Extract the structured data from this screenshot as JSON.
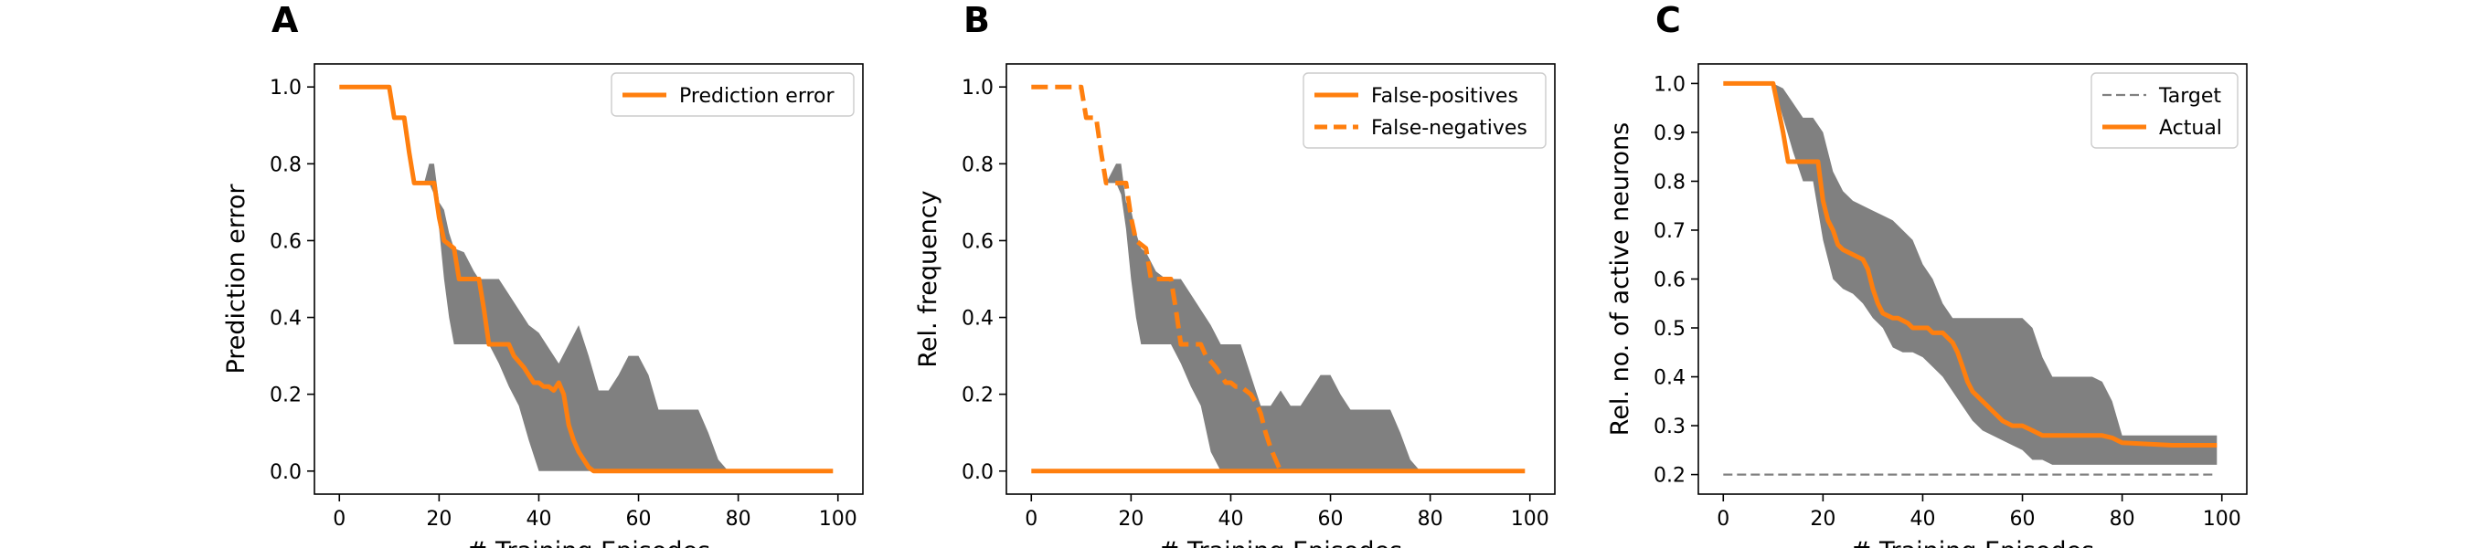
{
  "chart_data": [
    {
      "panel": "A",
      "type": "line",
      "xlabel": "# Training Episodes",
      "ylabel": "Prediction error",
      "xlim": [
        -5,
        105
      ],
      "ylim": [
        -0.06,
        1.06
      ],
      "xticks": [
        0,
        20,
        40,
        60,
        80,
        100
      ],
      "yticks": [
        0.0,
        0.2,
        0.4,
        0.6,
        0.8,
        1.0
      ],
      "ytick_labels": [
        "0.0",
        "0.2",
        "0.4",
        "0.6",
        "0.8",
        "1.0"
      ],
      "legend": {
        "position": "top-right",
        "entries": [
          {
            "label": "Prediction error",
            "style": "solid",
            "color": "#ff7f0e"
          }
        ]
      },
      "band": {
        "color": "#808080",
        "x": [
          11,
          13,
          15,
          17,
          18,
          19,
          20,
          21,
          22,
          23,
          25,
          27,
          28,
          30,
          32,
          34,
          36,
          38,
          40,
          42,
          44,
          46,
          48,
          50,
          52,
          54,
          56,
          58,
          60,
          62,
          64,
          66,
          68,
          70,
          72,
          74,
          76,
          78,
          99
        ],
        "upper": [
          1.0,
          0.9,
          0.75,
          0.75,
          0.8,
          0.8,
          0.7,
          0.68,
          0.62,
          0.58,
          0.57,
          0.52,
          0.5,
          0.5,
          0.5,
          0.46,
          0.42,
          0.38,
          0.36,
          0.32,
          0.28,
          0.33,
          0.38,
          0.3,
          0.21,
          0.21,
          0.25,
          0.3,
          0.3,
          0.25,
          0.16,
          0.16,
          0.16,
          0.16,
          0.16,
          0.1,
          0.03,
          0.0,
          0.0
        ],
        "lower": [
          1.0,
          0.9,
          0.75,
          0.75,
          0.75,
          0.72,
          0.63,
          0.5,
          0.4,
          0.33,
          0.33,
          0.33,
          0.33,
          0.33,
          0.28,
          0.22,
          0.17,
          0.08,
          0.0,
          0.0,
          0.0,
          0.0,
          0.0,
          0.0,
          0.0,
          0.0,
          0.0,
          0.0,
          0.0,
          0.0,
          0.0,
          0.0,
          0.0,
          0.0,
          0.0,
          0.0,
          0.0,
          0.0,
          0.0
        ]
      },
      "series": [
        {
          "name": "Prediction error",
          "color": "#ff7f0e",
          "style": "solid",
          "x": [
            0,
            10,
            11,
            12,
            13,
            14,
            15,
            18,
            19,
            20,
            21,
            23,
            24,
            27,
            28,
            29,
            30,
            31,
            33,
            34,
            35,
            37,
            38,
            39,
            40,
            41,
            42,
            43,
            44,
            45,
            46,
            47,
            48,
            49,
            50,
            51,
            52,
            99
          ],
          "y": [
            1.0,
            1.0,
            0.92,
            0.92,
            0.92,
            0.83,
            0.75,
            0.75,
            0.75,
            0.66,
            0.6,
            0.58,
            0.5,
            0.5,
            0.5,
            0.42,
            0.33,
            0.33,
            0.33,
            0.33,
            0.3,
            0.27,
            0.25,
            0.23,
            0.23,
            0.22,
            0.22,
            0.21,
            0.23,
            0.2,
            0.12,
            0.08,
            0.05,
            0.03,
            0.01,
            0.0,
            0.0,
            0.0
          ]
        }
      ]
    },
    {
      "panel": "B",
      "type": "line",
      "xlabel": "# Training Episodes",
      "ylabel": "Rel. frequency",
      "xlim": [
        -5,
        105
      ],
      "ylim": [
        -0.06,
        1.06
      ],
      "xticks": [
        0,
        20,
        40,
        60,
        80,
        100
      ],
      "yticks": [
        0.0,
        0.2,
        0.4,
        0.6,
        0.8,
        1.0
      ],
      "ytick_labels": [
        "0.0",
        "0.2",
        "0.4",
        "0.6",
        "0.8",
        "1.0"
      ],
      "legend": {
        "position": "top-right",
        "entries": [
          {
            "label": "False-positives",
            "style": "solid",
            "color": "#ff7f0e"
          },
          {
            "label": "False-negatives",
            "style": "dashed",
            "color": "#ff7f0e"
          }
        ]
      },
      "band": {
        "color": "#808080",
        "x": [
          13,
          15,
          17,
          18,
          19,
          20,
          21,
          22,
          23,
          25,
          27,
          28,
          30,
          32,
          34,
          36,
          38,
          40,
          42,
          44,
          46,
          48,
          50,
          52,
          54,
          56,
          58,
          60,
          62,
          64,
          66,
          68,
          70,
          72,
          74,
          76,
          78,
          99
        ],
        "upper": [
          0.75,
          0.75,
          0.8,
          0.8,
          0.7,
          0.68,
          0.62,
          0.58,
          0.57,
          0.52,
          0.5,
          0.5,
          0.5,
          0.46,
          0.42,
          0.38,
          0.33,
          0.33,
          0.33,
          0.25,
          0.17,
          0.17,
          0.21,
          0.17,
          0.17,
          0.21,
          0.25,
          0.25,
          0.2,
          0.16,
          0.16,
          0.16,
          0.16,
          0.16,
          0.1,
          0.03,
          0.0,
          0.0
        ],
        "lower": [
          0.75,
          0.75,
          0.75,
          0.72,
          0.63,
          0.5,
          0.4,
          0.33,
          0.33,
          0.33,
          0.33,
          0.33,
          0.28,
          0.22,
          0.17,
          0.05,
          0.0,
          0.0,
          0.0,
          0.0,
          0.0,
          0.0,
          0.0,
          0.0,
          0.0,
          0.0,
          0.0,
          0.0,
          0.0,
          0.0,
          0.0,
          0.0,
          0.0,
          0.0,
          0.0,
          0.0,
          0.0,
          0.0
        ]
      },
      "series": [
        {
          "name": "False-positives",
          "color": "#ff7f0e",
          "style": "solid",
          "x": [
            0,
            99
          ],
          "y": [
            0.0,
            0.0
          ]
        },
        {
          "name": "False-negatives",
          "color": "#ff7f0e",
          "style": "dashed",
          "x": [
            0,
            10,
            11,
            12,
            13,
            14,
            15,
            18,
            19,
            20,
            21,
            23,
            24,
            27,
            28,
            29,
            30,
            31,
            33,
            34,
            35,
            37,
            38,
            39,
            40,
            41,
            42,
            43,
            44,
            45,
            46,
            47,
            48,
            49,
            50
          ],
          "y": [
            1.0,
            1.0,
            0.92,
            0.92,
            0.92,
            0.83,
            0.75,
            0.75,
            0.75,
            0.66,
            0.6,
            0.58,
            0.5,
            0.5,
            0.5,
            0.42,
            0.33,
            0.33,
            0.33,
            0.33,
            0.3,
            0.27,
            0.25,
            0.23,
            0.23,
            0.22,
            0.22,
            0.21,
            0.2,
            0.18,
            0.15,
            0.1,
            0.06,
            0.03,
            0.0
          ]
        }
      ]
    },
    {
      "panel": "C",
      "type": "line",
      "xlabel": "# Training Episodes",
      "ylabel": "Rel. no. of active neurons",
      "xlim": [
        -5,
        105
      ],
      "ylim": [
        0.16,
        1.04
      ],
      "xticks": [
        0,
        20,
        40,
        60,
        80,
        100
      ],
      "yticks": [
        0.2,
        0.3,
        0.4,
        0.5,
        0.6,
        0.7,
        0.8,
        0.9,
        1.0
      ],
      "ytick_labels": [
        "0.2",
        "0.3",
        "0.4",
        "0.5",
        "0.6",
        "0.7",
        "0.8",
        "0.9",
        "1.0"
      ],
      "legend": {
        "position": "top-right",
        "entries": [
          {
            "label": "Target",
            "style": "dashed",
            "color": "#808080"
          },
          {
            "label": "Actual",
            "style": "solid",
            "color": "#ff7f0e"
          }
        ]
      },
      "band": {
        "color": "#808080",
        "x": [
          10,
          12,
          14,
          16,
          18,
          20,
          22,
          24,
          26,
          28,
          30,
          32,
          34,
          36,
          38,
          40,
          42,
          44,
          46,
          48,
          50,
          52,
          54,
          56,
          58,
          60,
          62,
          64,
          66,
          68,
          70,
          72,
          74,
          76,
          78,
          80,
          82,
          99
        ],
        "upper": [
          1.0,
          0.99,
          0.96,
          0.93,
          0.93,
          0.9,
          0.82,
          0.78,
          0.76,
          0.75,
          0.74,
          0.73,
          0.72,
          0.7,
          0.68,
          0.63,
          0.6,
          0.55,
          0.52,
          0.52,
          0.52,
          0.52,
          0.52,
          0.52,
          0.52,
          0.52,
          0.5,
          0.44,
          0.4,
          0.4,
          0.4,
          0.4,
          0.4,
          0.39,
          0.35,
          0.28,
          0.28,
          0.28
        ],
        "lower": [
          1.0,
          0.93,
          0.86,
          0.8,
          0.8,
          0.68,
          0.6,
          0.58,
          0.57,
          0.55,
          0.52,
          0.5,
          0.46,
          0.45,
          0.45,
          0.44,
          0.42,
          0.4,
          0.37,
          0.34,
          0.31,
          0.29,
          0.28,
          0.27,
          0.26,
          0.25,
          0.23,
          0.23,
          0.22,
          0.22,
          0.22,
          0.22,
          0.22,
          0.22,
          0.22,
          0.22,
          0.22,
          0.22
        ]
      },
      "series": [
        {
          "name": "Target",
          "color": "#808080",
          "style": "dashed",
          "x": [
            0,
            99
          ],
          "y": [
            0.2,
            0.2
          ]
        },
        {
          "name": "Actual",
          "color": "#ff7f0e",
          "style": "solid",
          "x": [
            0,
            10,
            11,
            12,
            13,
            14,
            18,
            19,
            20,
            21,
            22,
            23,
            24,
            26,
            28,
            29,
            30,
            31,
            32,
            34,
            35,
            37,
            38,
            39,
            40,
            41,
            42,
            44,
            46,
            47,
            48,
            49,
            50,
            52,
            54,
            56,
            58,
            60,
            62,
            64,
            66,
            68,
            70,
            72,
            74,
            76,
            78,
            80,
            90,
            99
          ],
          "y": [
            1.0,
            1.0,
            0.95,
            0.9,
            0.84,
            0.84,
            0.84,
            0.84,
            0.76,
            0.72,
            0.7,
            0.67,
            0.66,
            0.65,
            0.64,
            0.62,
            0.58,
            0.55,
            0.53,
            0.52,
            0.52,
            0.51,
            0.5,
            0.5,
            0.5,
            0.5,
            0.49,
            0.49,
            0.47,
            0.45,
            0.42,
            0.39,
            0.37,
            0.35,
            0.33,
            0.31,
            0.3,
            0.3,
            0.29,
            0.28,
            0.28,
            0.28,
            0.28,
            0.28,
            0.28,
            0.28,
            0.275,
            0.265,
            0.26,
            0.26
          ]
        }
      ]
    }
  ]
}
